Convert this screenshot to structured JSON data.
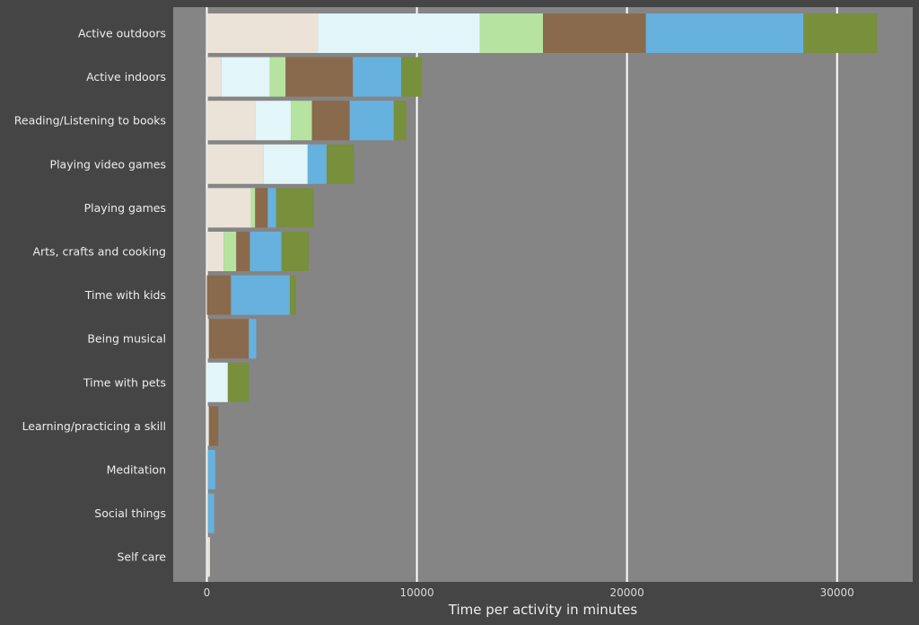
{
  "chart_data": {
    "type": "bar",
    "orientation": "horizontal",
    "stacked": true,
    "title": "",
    "xlabel": "Time per activity in minutes",
    "ylabel": "",
    "xlim": [
      -1600,
      33600
    ],
    "x_ticks": [
      0,
      10000,
      20000,
      30000
    ],
    "x_tick_labels": [
      "0",
      "10000",
      "20000",
      "30000"
    ],
    "grid": true,
    "legend": "none",
    "categories": [
      "Active outdoors",
      "Active indoors",
      "Reading/Listening to books",
      "Playing video games",
      "Playing games",
      "Arts, crafts and cooking",
      "Time with kids",
      "Being musical",
      "Time with pets",
      "Learning/practicing a skill",
      "Meditation",
      "Social things",
      "Self care"
    ],
    "series": [
      {
        "name": "series-1",
        "color": "#ebe2d8",
        "values": [
          5300,
          700,
          2300,
          2700,
          2100,
          800,
          0,
          100,
          0,
          100,
          50,
          50,
          150
        ]
      },
      {
        "name": "series-2",
        "color": "#e2f5f8",
        "values": [
          7700,
          2300,
          1700,
          2100,
          0,
          0,
          0,
          0,
          1000,
          0,
          0,
          0,
          0
        ]
      },
      {
        "name": "series-3",
        "color": "#b7e3a0",
        "values": [
          3000,
          750,
          1000,
          0,
          200,
          600,
          0,
          0,
          0,
          0,
          0,
          0,
          0
        ]
      },
      {
        "name": "series-4",
        "color": "#8a6a4c",
        "values": [
          4900,
          3200,
          1800,
          0,
          600,
          650,
          1150,
          1900,
          0,
          450,
          0,
          0,
          0
        ]
      },
      {
        "name": "series-5",
        "color": "#67b1df",
        "values": [
          7500,
          2300,
          2100,
          900,
          400,
          1500,
          2800,
          350,
          0,
          0,
          350,
          300,
          0
        ]
      },
      {
        "name": "series-6",
        "color": "#788f3c",
        "values": [
          3500,
          1000,
          600,
          1300,
          1800,
          1300,
          300,
          0,
          1000,
          0,
          0,
          0,
          0
        ]
      }
    ]
  }
}
